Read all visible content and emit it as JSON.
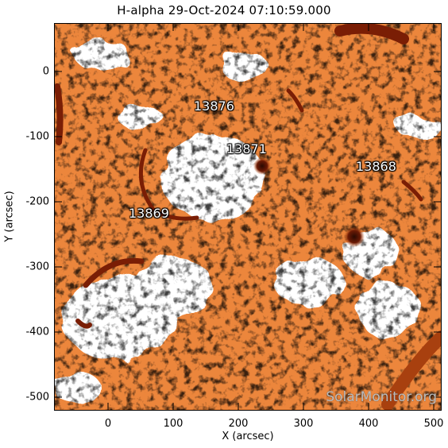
{
  "title": "H-alpha 29-Oct-2024 07:10:59.000",
  "x_axis": {
    "title": "X (arcsec)",
    "ticks": [
      "0",
      "100",
      "200",
      "300",
      "400",
      "500"
    ]
  },
  "y_axis": {
    "title": "Y (arcsec)",
    "ticks": [
      "0",
      "-100",
      "-200",
      "-300",
      "-400",
      "-500"
    ]
  },
  "regions": [
    {
      "label": "13876"
    },
    {
      "label": "13871"
    },
    {
      "label": "13868"
    },
    {
      "label": "13869"
    }
  ],
  "watermark": "SolarMonitor.org",
  "colors": {
    "chromosphere": "#e8782a",
    "plage": "#ffffff",
    "filament": "#7a1e05",
    "background": "#ffffff"
  }
}
